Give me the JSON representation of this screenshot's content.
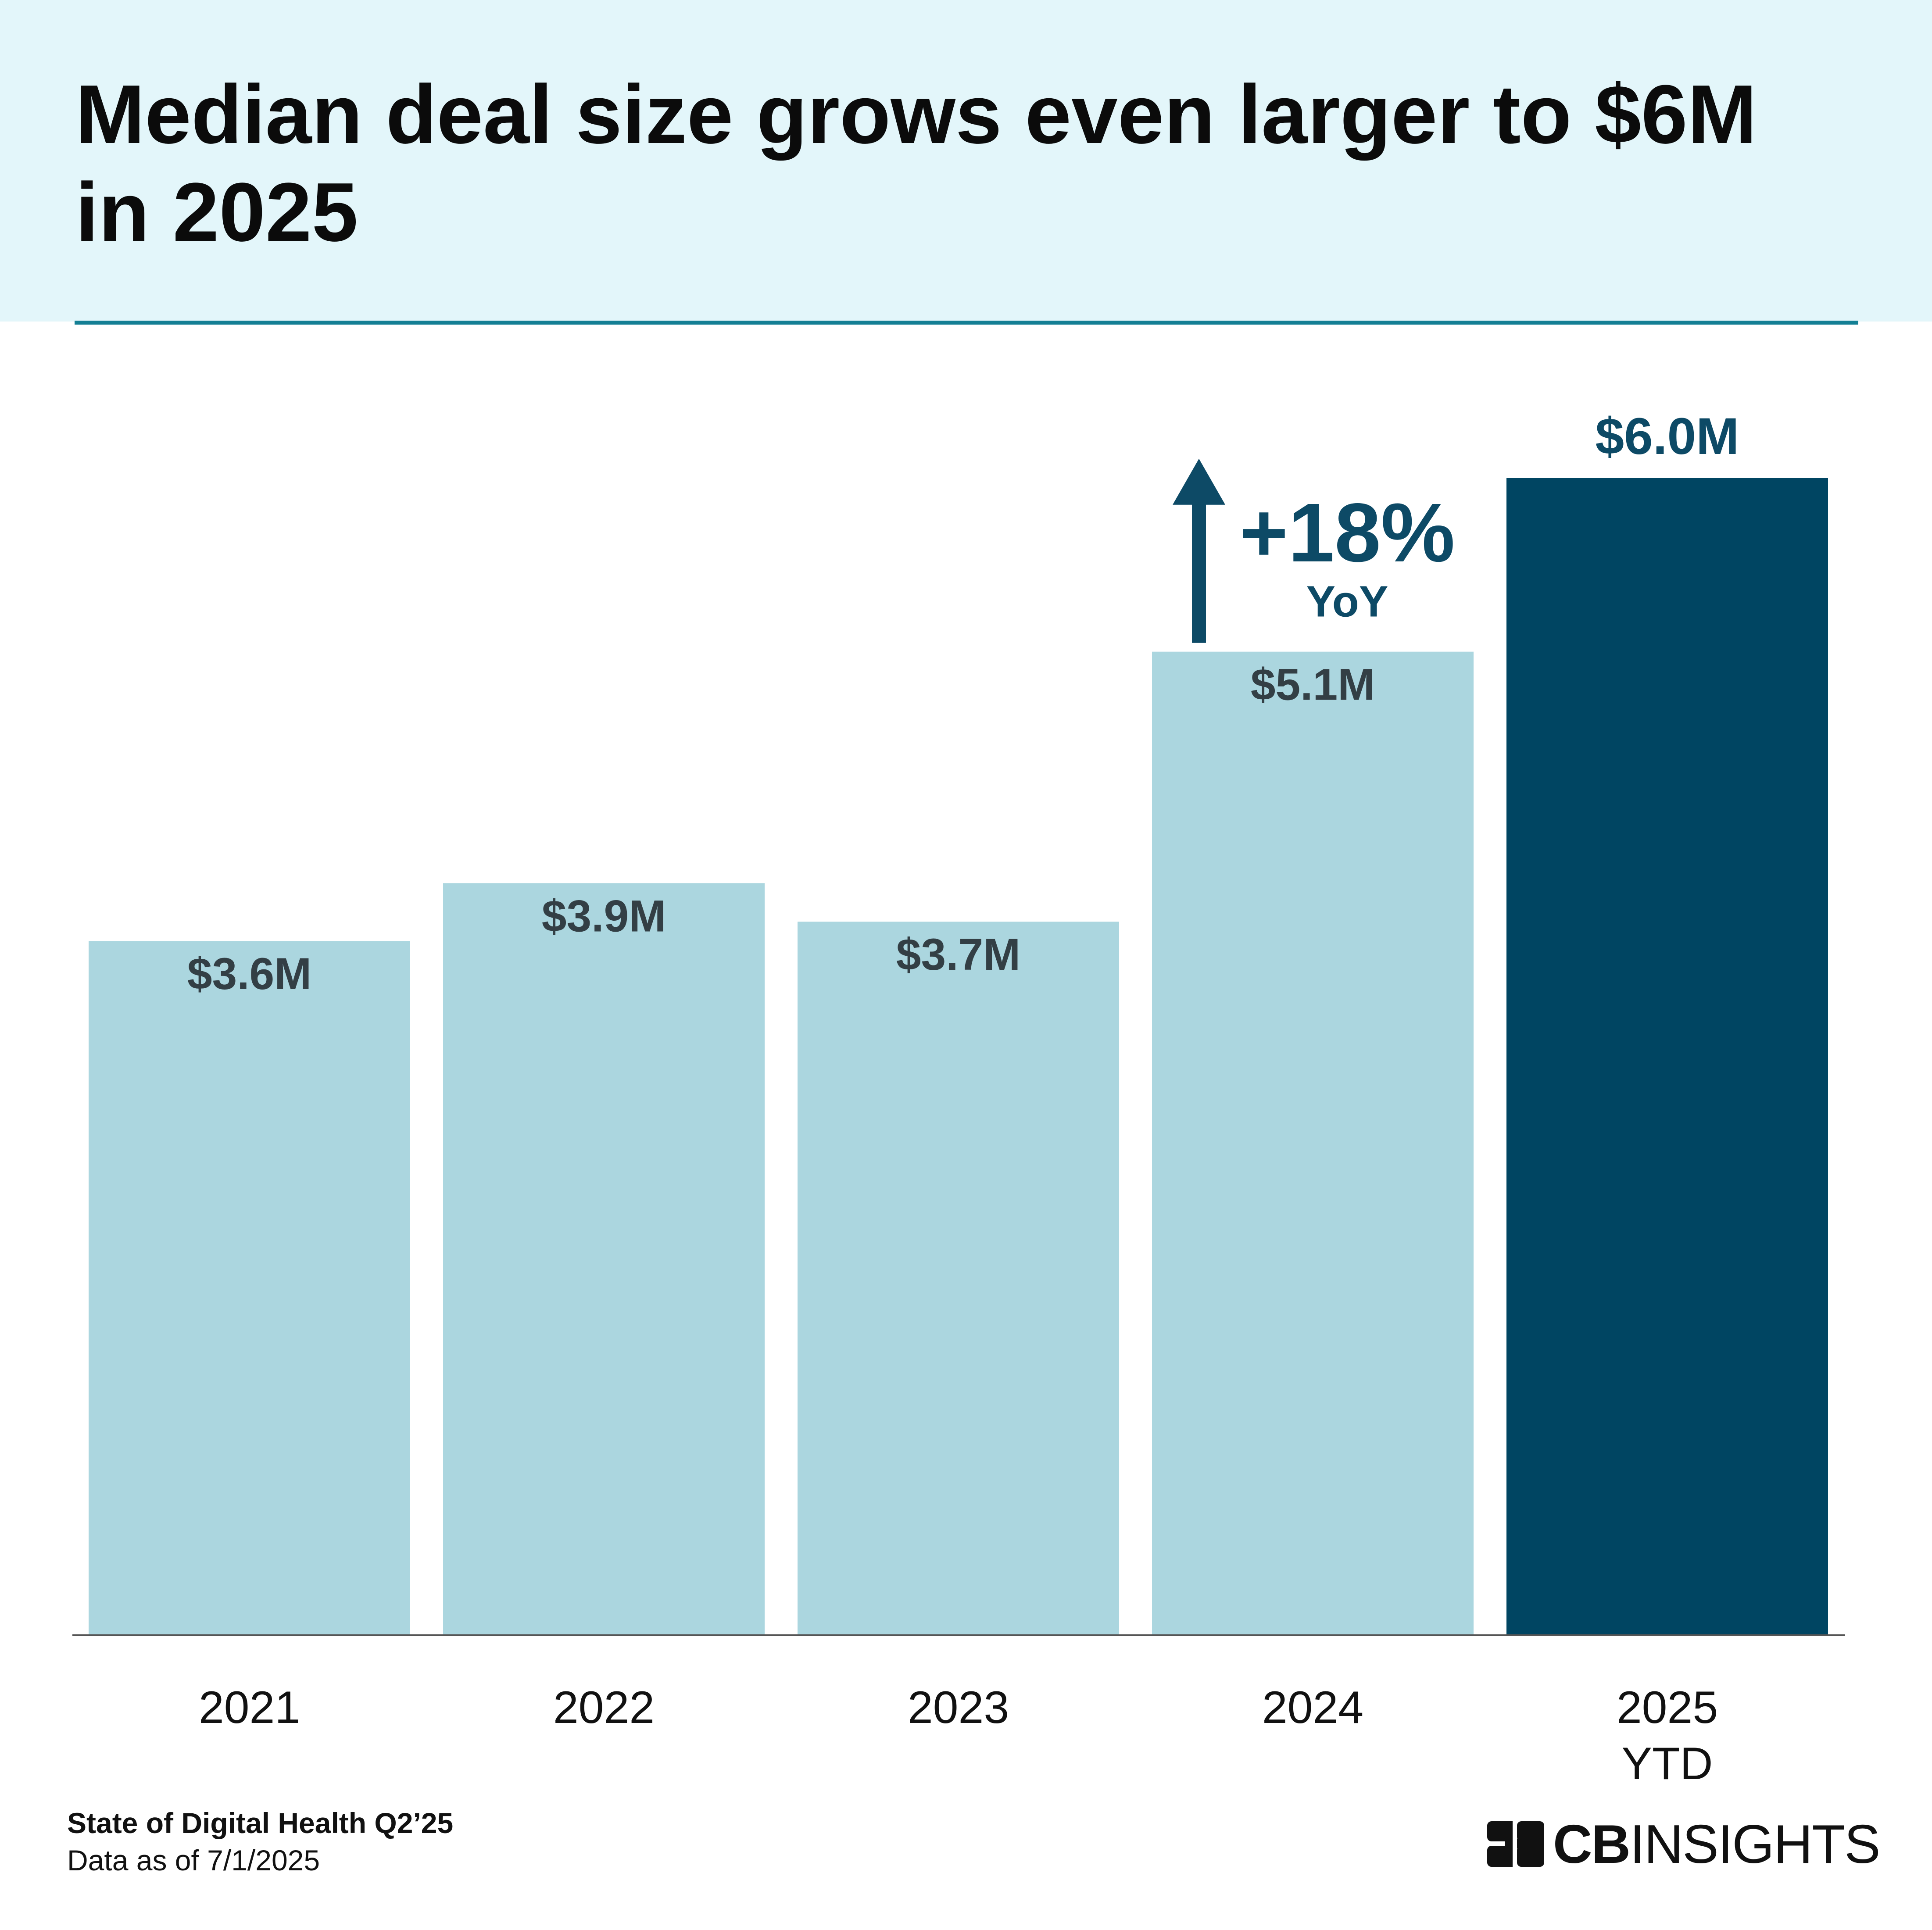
{
  "header": {
    "title": "Median deal size grows even larger to $6M in 2025"
  },
  "chart_data": {
    "type": "bar",
    "title": "Median deal size grows even larger to $6M in 2025",
    "categories": [
      [
        "2021"
      ],
      [
        "2022"
      ],
      [
        "2023"
      ],
      [
        "2024"
      ],
      [
        "2025",
        "YTD"
      ]
    ],
    "values": [
      3.6,
      3.9,
      3.7,
      5.1,
      6.0
    ],
    "value_labels": [
      "$3.6M",
      "$3.9M",
      "$3.7M",
      "$5.1M",
      "$6.0M"
    ],
    "unit": "$M",
    "xlabel": "",
    "ylabel": "",
    "ylim": [
      0,
      6.0
    ],
    "grid": false,
    "legend": "none",
    "highlight_index": 4,
    "annotation": {
      "value": "+18%",
      "label": "YoY"
    }
  },
  "colors": {
    "header_bg": "#e3f6fa",
    "rule": "#137f94",
    "bar": "#abd6df",
    "bar_highlight": "#004562",
    "label_dark": "#333f45",
    "accent": "#0d4a66",
    "axis": "#555555"
  },
  "footer": {
    "source_title": "State of Digital Health Q2’25",
    "source_date": "Data as of 7/1/2025"
  },
  "logo": {
    "bold": "CB",
    "regular": "INSIGHTS"
  }
}
